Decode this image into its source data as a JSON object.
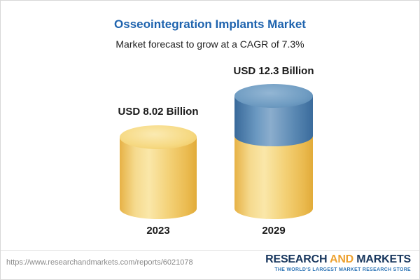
{
  "header": {
    "title": "Osseointegration Implants Market",
    "subtitle": "Market forecast to grow at a CAGR of 7.3%"
  },
  "chart_data": {
    "type": "bar",
    "title": "Osseointegration Implants Market",
    "subtitle": "Market forecast to grow at a CAGR of 7.3%",
    "categories": [
      "2023",
      "2029"
    ],
    "values": [
      8.02,
      12.3
    ],
    "unit": "USD Billion",
    "bars": [
      {
        "category": "2023",
        "value": 8.02,
        "label": "USD 8.02 Billion",
        "segment_colors": [
          "#f2cd6d"
        ]
      },
      {
        "category": "2029",
        "value": 12.3,
        "label": "USD 12.3 Billion",
        "segment_colors": [
          "#f2cd6d",
          "#5c8ab4"
        ]
      }
    ],
    "colors": {
      "gold": "#f2cd6d",
      "blue": "#5c8ab4",
      "title_blue": "#1e63ae"
    },
    "legend": "none",
    "grid": false
  },
  "footer": {
    "url": "https://www.researchandmarkets.com/reports/6021078",
    "logo": {
      "part1": "RESEARCH ",
      "part2": "AND ",
      "part3": "MARKETS",
      "tagline": "THE WORLD'S LARGEST MARKET RESEARCH STORE"
    }
  }
}
